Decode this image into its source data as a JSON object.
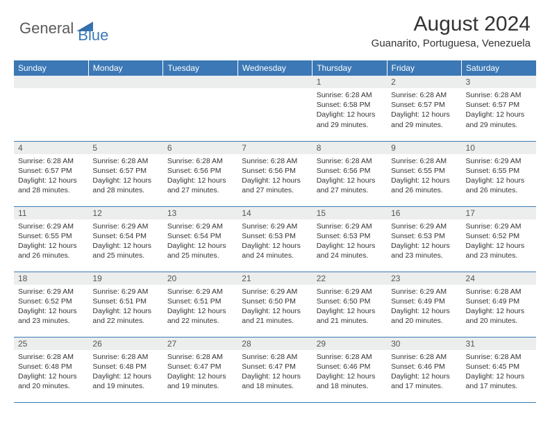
{
  "brand": {
    "general": "General",
    "blue": "Blue"
  },
  "title": "August 2024",
  "location": "Guanarito, Portuguesa, Venezuela",
  "colors": {
    "header_bg": "#3b78b5",
    "header_text": "#ffffff",
    "daynum_bg": "#eceded",
    "border": "#3b78b5",
    "text": "#333333"
  },
  "weekdays": [
    "Sunday",
    "Monday",
    "Tuesday",
    "Wednesday",
    "Thursday",
    "Friday",
    "Saturday"
  ],
  "weeks": [
    [
      {
        "day": "",
        "sunrise": "",
        "sunset": "",
        "daylight": ""
      },
      {
        "day": "",
        "sunrise": "",
        "sunset": "",
        "daylight": ""
      },
      {
        "day": "",
        "sunrise": "",
        "sunset": "",
        "daylight": ""
      },
      {
        "day": "",
        "sunrise": "",
        "sunset": "",
        "daylight": ""
      },
      {
        "day": "1",
        "sunrise": "Sunrise: 6:28 AM",
        "sunset": "Sunset: 6:58 PM",
        "daylight": "Daylight: 12 hours and 29 minutes."
      },
      {
        "day": "2",
        "sunrise": "Sunrise: 6:28 AM",
        "sunset": "Sunset: 6:57 PM",
        "daylight": "Daylight: 12 hours and 29 minutes."
      },
      {
        "day": "3",
        "sunrise": "Sunrise: 6:28 AM",
        "sunset": "Sunset: 6:57 PM",
        "daylight": "Daylight: 12 hours and 29 minutes."
      }
    ],
    [
      {
        "day": "4",
        "sunrise": "Sunrise: 6:28 AM",
        "sunset": "Sunset: 6:57 PM",
        "daylight": "Daylight: 12 hours and 28 minutes."
      },
      {
        "day": "5",
        "sunrise": "Sunrise: 6:28 AM",
        "sunset": "Sunset: 6:57 PM",
        "daylight": "Daylight: 12 hours and 28 minutes."
      },
      {
        "day": "6",
        "sunrise": "Sunrise: 6:28 AM",
        "sunset": "Sunset: 6:56 PM",
        "daylight": "Daylight: 12 hours and 27 minutes."
      },
      {
        "day": "7",
        "sunrise": "Sunrise: 6:28 AM",
        "sunset": "Sunset: 6:56 PM",
        "daylight": "Daylight: 12 hours and 27 minutes."
      },
      {
        "day": "8",
        "sunrise": "Sunrise: 6:28 AM",
        "sunset": "Sunset: 6:56 PM",
        "daylight": "Daylight: 12 hours and 27 minutes."
      },
      {
        "day": "9",
        "sunrise": "Sunrise: 6:28 AM",
        "sunset": "Sunset: 6:55 PM",
        "daylight": "Daylight: 12 hours and 26 minutes."
      },
      {
        "day": "10",
        "sunrise": "Sunrise: 6:29 AM",
        "sunset": "Sunset: 6:55 PM",
        "daylight": "Daylight: 12 hours and 26 minutes."
      }
    ],
    [
      {
        "day": "11",
        "sunrise": "Sunrise: 6:29 AM",
        "sunset": "Sunset: 6:55 PM",
        "daylight": "Daylight: 12 hours and 26 minutes."
      },
      {
        "day": "12",
        "sunrise": "Sunrise: 6:29 AM",
        "sunset": "Sunset: 6:54 PM",
        "daylight": "Daylight: 12 hours and 25 minutes."
      },
      {
        "day": "13",
        "sunrise": "Sunrise: 6:29 AM",
        "sunset": "Sunset: 6:54 PM",
        "daylight": "Daylight: 12 hours and 25 minutes."
      },
      {
        "day": "14",
        "sunrise": "Sunrise: 6:29 AM",
        "sunset": "Sunset: 6:53 PM",
        "daylight": "Daylight: 12 hours and 24 minutes."
      },
      {
        "day": "15",
        "sunrise": "Sunrise: 6:29 AM",
        "sunset": "Sunset: 6:53 PM",
        "daylight": "Daylight: 12 hours and 24 minutes."
      },
      {
        "day": "16",
        "sunrise": "Sunrise: 6:29 AM",
        "sunset": "Sunset: 6:53 PM",
        "daylight": "Daylight: 12 hours and 23 minutes."
      },
      {
        "day": "17",
        "sunrise": "Sunrise: 6:29 AM",
        "sunset": "Sunset: 6:52 PM",
        "daylight": "Daylight: 12 hours and 23 minutes."
      }
    ],
    [
      {
        "day": "18",
        "sunrise": "Sunrise: 6:29 AM",
        "sunset": "Sunset: 6:52 PM",
        "daylight": "Daylight: 12 hours and 23 minutes."
      },
      {
        "day": "19",
        "sunrise": "Sunrise: 6:29 AM",
        "sunset": "Sunset: 6:51 PM",
        "daylight": "Daylight: 12 hours and 22 minutes."
      },
      {
        "day": "20",
        "sunrise": "Sunrise: 6:29 AM",
        "sunset": "Sunset: 6:51 PM",
        "daylight": "Daylight: 12 hours and 22 minutes."
      },
      {
        "day": "21",
        "sunrise": "Sunrise: 6:29 AM",
        "sunset": "Sunset: 6:50 PM",
        "daylight": "Daylight: 12 hours and 21 minutes."
      },
      {
        "day": "22",
        "sunrise": "Sunrise: 6:29 AM",
        "sunset": "Sunset: 6:50 PM",
        "daylight": "Daylight: 12 hours and 21 minutes."
      },
      {
        "day": "23",
        "sunrise": "Sunrise: 6:29 AM",
        "sunset": "Sunset: 6:49 PM",
        "daylight": "Daylight: 12 hours and 20 minutes."
      },
      {
        "day": "24",
        "sunrise": "Sunrise: 6:28 AM",
        "sunset": "Sunset: 6:49 PM",
        "daylight": "Daylight: 12 hours and 20 minutes."
      }
    ],
    [
      {
        "day": "25",
        "sunrise": "Sunrise: 6:28 AM",
        "sunset": "Sunset: 6:48 PM",
        "daylight": "Daylight: 12 hours and 20 minutes."
      },
      {
        "day": "26",
        "sunrise": "Sunrise: 6:28 AM",
        "sunset": "Sunset: 6:48 PM",
        "daylight": "Daylight: 12 hours and 19 minutes."
      },
      {
        "day": "27",
        "sunrise": "Sunrise: 6:28 AM",
        "sunset": "Sunset: 6:47 PM",
        "daylight": "Daylight: 12 hours and 19 minutes."
      },
      {
        "day": "28",
        "sunrise": "Sunrise: 6:28 AM",
        "sunset": "Sunset: 6:47 PM",
        "daylight": "Daylight: 12 hours and 18 minutes."
      },
      {
        "day": "29",
        "sunrise": "Sunrise: 6:28 AM",
        "sunset": "Sunset: 6:46 PM",
        "daylight": "Daylight: 12 hours and 18 minutes."
      },
      {
        "day": "30",
        "sunrise": "Sunrise: 6:28 AM",
        "sunset": "Sunset: 6:46 PM",
        "daylight": "Daylight: 12 hours and 17 minutes."
      },
      {
        "day": "31",
        "sunrise": "Sunrise: 6:28 AM",
        "sunset": "Sunset: 6:45 PM",
        "daylight": "Daylight: 12 hours and 17 minutes."
      }
    ]
  ]
}
